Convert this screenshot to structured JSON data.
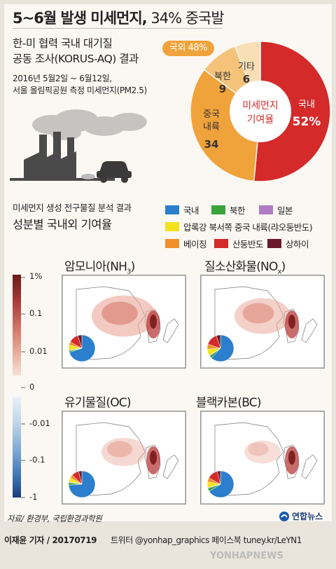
{
  "title": {
    "main": "5~6월 발생 미세먼지,",
    "sub": " 34% 중국발"
  },
  "intro": {
    "line1": "한-미 협력 국내 대기질",
    "line2": "공동 조사(KORUS-AQ) 결과",
    "date": "2016년 5월2일 ~ 6월12일,",
    "place": "서울 올림픽공원 측정 미세먼지(PM2.5)"
  },
  "donut": {
    "center_line1": "미세먼지",
    "center_line2": "기여율",
    "foreign_badge": "국외 48%",
    "segments": [
      {
        "name": "국내",
        "value": 52,
        "label": "52%",
        "color": "#d42a2a"
      },
      {
        "name": "중국\n내륙",
        "value": 34,
        "label": "34",
        "color": "#f0a23b"
      },
      {
        "name": "북한",
        "value": 9,
        "label": "9",
        "color": "#f5c27a"
      },
      {
        "name": "기타",
        "value": 6,
        "label": "6",
        "color": "#f8dfb6"
      }
    ]
  },
  "section2": {
    "line1": "미세먼지 생성 전구물질 분석 결과",
    "line2": "성분별 국내외 기여율"
  },
  "legend": [
    {
      "label": "국내",
      "color": "#2b7fcc"
    },
    {
      "label": "북한",
      "color": "#3aa33a"
    },
    {
      "label": "일본",
      "color": "#b07cc6"
    },
    {
      "label": "압록강 북서쪽 중국 내륙(랴오둥반도)",
      "color": "#f2e21a"
    },
    {
      "label": "베이징",
      "color": "#f0902a"
    },
    {
      "label": "산둥반도",
      "color": "#d42a2a"
    },
    {
      "label": "상하이",
      "color": "#6a1a2a"
    }
  ],
  "scale_pos": [
    "1%",
    "0.1",
    "0.01"
  ],
  "scale_neg": [
    "0",
    "-0.01",
    "-0.1",
    "-1"
  ],
  "maps": [
    {
      "title": "암모니아(NH",
      "sub": "3",
      "close": ")"
    },
    {
      "title": "질소산화물(NO",
      "sub": "x",
      "close": ")"
    },
    {
      "title": "유기물질(OC)",
      "sub": "",
      "close": ""
    },
    {
      "title": "블랙카본(BC)",
      "sub": "",
      "close": ""
    }
  ],
  "source": "자료/ 환경부, 국립환경과학원",
  "brand": "연합뉴스",
  "footer": {
    "credit": "이재윤 기자 / 20170719",
    "social": "트위터 @yonhap_graphics  페이스북 tuney.kr/LeYN1",
    "watermark": "YONHAPNEWS"
  }
}
